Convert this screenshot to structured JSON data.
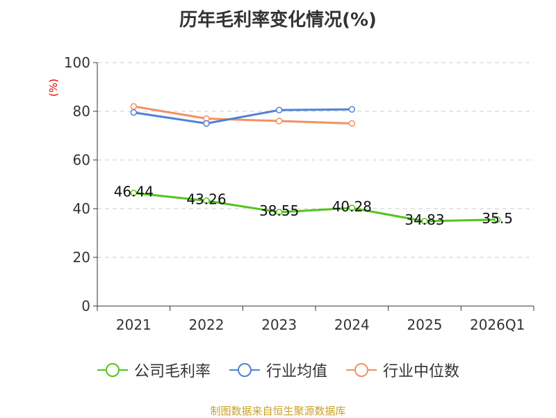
{
  "chart_data": {
    "type": "line",
    "title": "历年毛利率变化情况(%)",
    "ylabel": "(%)",
    "xlabel": "",
    "ylim": [
      0,
      100
    ],
    "yticks": [
      0,
      20,
      40,
      60,
      80,
      100
    ],
    "grid": true,
    "legend_position": "bottom",
    "categories": [
      "2021",
      "2022",
      "2023",
      "2024",
      "2025",
      "2026Q1"
    ],
    "series": [
      {
        "name": "公司毛利率",
        "color": "#52c41a",
        "values": [
          46.44,
          43.26,
          38.55,
          40.28,
          34.83,
          35.5
        ],
        "labels": true
      },
      {
        "name": "行业均值",
        "color": "#4f81d9",
        "values": [
          79.5,
          75.0,
          80.5,
          80.8,
          null,
          null
        ],
        "labels": false
      },
      {
        "name": "行业中位数",
        "color": "#f39160",
        "values": [
          82.0,
          77.0,
          76.0,
          75.0,
          null,
          null
        ],
        "labels": false
      }
    ]
  },
  "source": "制图数据来自恒生聚源数据库"
}
